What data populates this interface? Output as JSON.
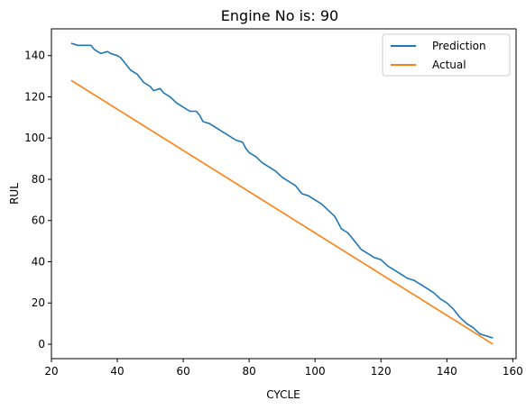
{
  "chart_data": {
    "type": "line",
    "title": "Engine No is: 90",
    "xlabel": "CYCLE",
    "ylabel": "RUL",
    "xlim": [
      20,
      161
    ],
    "ylim": [
      -7,
      153
    ],
    "xticks": [
      20,
      40,
      60,
      80,
      100,
      120,
      140,
      160
    ],
    "yticks": [
      0,
      20,
      40,
      60,
      80,
      100,
      120,
      140
    ],
    "grid": false,
    "legend_position": "top-right",
    "series": [
      {
        "name": "Prediction",
        "color": "#1f77b4",
        "x": [
          26,
          28,
          30,
          32,
          33,
          35,
          37,
          38,
          40,
          41,
          42,
          44,
          46,
          48,
          50,
          51,
          53,
          54,
          56,
          58,
          60,
          62,
          64,
          65,
          66,
          68,
          70,
          72,
          74,
          76,
          78,
          79,
          80,
          82,
          84,
          86,
          88,
          90,
          92,
          94,
          96,
          98,
          100,
          102,
          104,
          106,
          108,
          110,
          112,
          114,
          116,
          118,
          120,
          122,
          124,
          126,
          128,
          130,
          132,
          134,
          136,
          138,
          140,
          142,
          144,
          146,
          148,
          150,
          152,
          154
        ],
        "y": [
          146,
          145,
          145,
          145,
          143,
          141,
          142,
          141,
          140,
          139,
          137,
          133,
          131,
          127,
          125,
          123,
          124,
          122,
          120,
          117,
          115,
          113,
          113,
          111,
          108,
          107,
          105,
          103,
          101,
          99,
          98,
          95,
          93,
          91,
          88,
          86,
          84,
          81,
          79,
          77,
          73,
          72,
          70,
          68,
          65,
          62,
          56,
          54,
          50,
          46,
          44,
          42,
          41,
          38,
          36,
          34,
          32,
          31,
          29,
          27,
          25,
          22,
          20,
          17,
          13,
          10,
          8,
          5,
          4,
          3
        ]
      },
      {
        "name": "Actual",
        "color": "#ff7f0e",
        "x": [
          26,
          154
        ],
        "y": [
          128,
          0
        ]
      }
    ]
  }
}
